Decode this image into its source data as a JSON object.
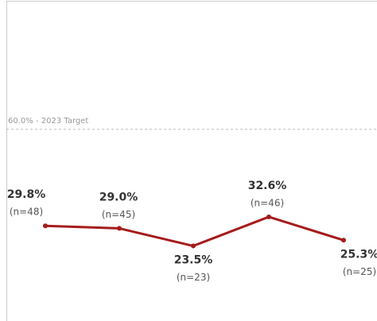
{
  "chart_data": {
    "type": "line",
    "categories": [
      null,
      null,
      null,
      null,
      null
    ],
    "series": [
      {
        "color": "#a51c1c",
        "values": [
          29.8,
          29.0,
          23.5,
          32.6,
          25.3
        ],
        "value_labels": [
          "29.8%",
          "29.0%",
          "23.5%",
          "32.6%",
          "25.3%"
        ],
        "n_labels": [
          "(n=48)",
          "(n=45)",
          "(n=23)",
          "(n=46)",
          "(n=25)"
        ]
      }
    ],
    "ylim": [
      0,
      100
    ],
    "reference_lines": [
      {
        "value": 60,
        "label": "60.0% - 2023 Target"
      }
    ]
  }
}
